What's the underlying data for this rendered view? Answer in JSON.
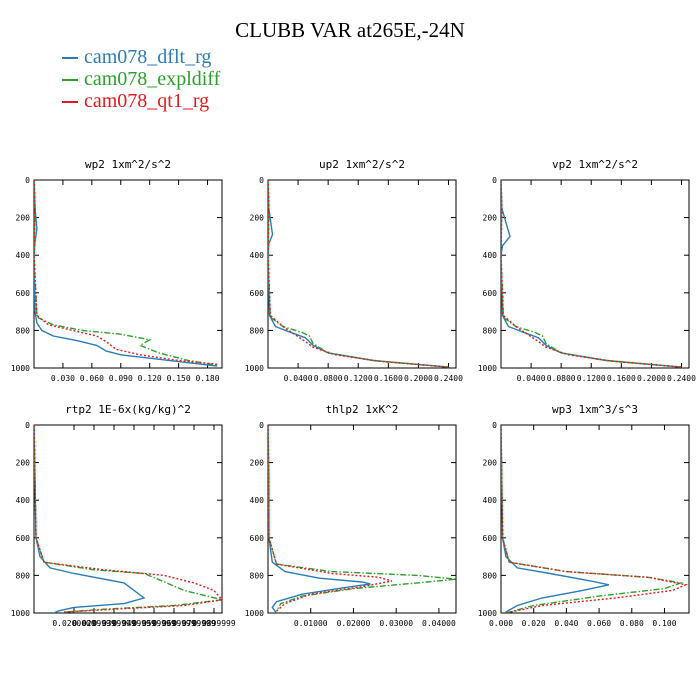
{
  "figure": {
    "title": "CLUBB VAR at265E,-24N"
  },
  "legend": [
    {
      "label": "cam078_dflt_rg",
      "color": "#2c7bb6",
      "dash": "solid"
    },
    {
      "label": "cam078_expldiff",
      "color": "#2ca02c",
      "dash": "dashdot"
    },
    {
      "label": "cam078_qt1_rg",
      "color": "#e31a1c",
      "dash": "dotted"
    }
  ],
  "chart_data": [
    {
      "type": "line",
      "title": "wp2  1xm^2/s^2",
      "xlim": [
        0,
        0.195
      ],
      "ylim": [
        0,
        1000
      ],
      "y_inverted": true,
      "xticks": [
        0.03,
        0.06,
        0.09,
        0.12,
        0.15,
        0.18
      ],
      "xtick_labels": [
        "0.030",
        "0.060",
        "0.090",
        "0.120",
        "0.150",
        "0.180"
      ],
      "yticks": [
        0,
        200,
        400,
        600,
        800,
        1000
      ],
      "ytick_labels": [
        "0",
        "200",
        "400",
        "600",
        "800",
        "1000"
      ],
      "series": [
        {
          "name": "cam078_dflt_rg",
          "x": [
            0.0,
            0.001,
            0.003,
            0.001,
            0.0,
            0.001,
            0.003,
            0.008,
            0.02,
            0.045,
            0.065,
            0.075,
            0.09,
            0.19
          ],
          "y": [
            0,
            150,
            260,
            330,
            400,
            700,
            760,
            800,
            830,
            855,
            880,
            910,
            930,
            990
          ]
        },
        {
          "name": "cam078_expldiff",
          "x": [
            0.0,
            0.001,
            0.0,
            0.003,
            0.02,
            0.05,
            0.09,
            0.12,
            0.11,
            0.13,
            0.16,
            0.19
          ],
          "y": [
            0,
            150,
            400,
            730,
            770,
            800,
            820,
            850,
            880,
            920,
            960,
            985
          ]
        },
        {
          "name": "cam078_qt1_rg",
          "x": [
            0.0,
            0.001,
            0.0,
            0.003,
            0.015,
            0.04,
            0.065,
            0.075,
            0.085,
            0.11,
            0.15,
            0.19
          ],
          "y": [
            0,
            150,
            400,
            720,
            770,
            800,
            830,
            860,
            900,
            930,
            960,
            980
          ]
        }
      ]
    },
    {
      "type": "line",
      "title": "up2  1xm^2/s^2",
      "xlim": [
        0,
        0.25
      ],
      "ylim": [
        0,
        1000
      ],
      "y_inverted": true,
      "xticks": [
        0.04,
        0.08,
        0.12,
        0.16,
        0.2,
        0.24
      ],
      "xtick_labels": [
        "0.0400",
        "0.0800",
        "0.1200",
        "0.1600",
        "0.2000",
        "0.2400"
      ],
      "yticks": [
        0,
        200,
        400,
        600,
        800,
        1000
      ],
      "ytick_labels": [
        "0",
        "200",
        "400",
        "600",
        "800",
        "1000"
      ],
      "series": [
        {
          "name": "cam078_dflt_rg",
          "x": [
            0.0,
            0.001,
            0.006,
            0.001,
            0.0,
            0.002,
            0.01,
            0.03,
            0.05,
            0.06,
            0.08,
            0.14,
            0.24
          ],
          "y": [
            0,
            150,
            290,
            340,
            400,
            720,
            780,
            810,
            840,
            880,
            920,
            960,
            995
          ]
        },
        {
          "name": "cam078_expldiff",
          "x": [
            0.0,
            0.001,
            0.0,
            0.003,
            0.02,
            0.045,
            0.055,
            0.06,
            0.08,
            0.14,
            0.24
          ],
          "y": [
            0,
            150,
            400,
            730,
            780,
            810,
            830,
            870,
            920,
            960,
            995
          ]
        },
        {
          "name": "cam078_qt1_rg",
          "x": [
            0.0,
            0.001,
            0.0,
            0.003,
            0.02,
            0.035,
            0.05,
            0.06,
            0.09,
            0.15,
            0.24
          ],
          "y": [
            0,
            150,
            400,
            720,
            780,
            820,
            860,
            890,
            930,
            965,
            995
          ]
        }
      ]
    },
    {
      "type": "line",
      "title": "vp2  1xm^2/s^2",
      "xlim": [
        0,
        0.25
      ],
      "ylim": [
        0,
        1000
      ],
      "y_inverted": true,
      "xticks": [
        0.04,
        0.08,
        0.12,
        0.16,
        0.2,
        0.24
      ],
      "xtick_labels": [
        "0.0400",
        "0.0800",
        "0.1200",
        "0.1600",
        "0.2000",
        "0.2400"
      ],
      "yticks": [
        0,
        200,
        400,
        600,
        800,
        1000
      ],
      "ytick_labels": [
        "0",
        "200",
        "400",
        "600",
        "800",
        "1000"
      ],
      "series": [
        {
          "name": "cam078_dflt_rg",
          "x": [
            0.0,
            0.001,
            0.012,
            0.002,
            0.0,
            0.002,
            0.01,
            0.03,
            0.05,
            0.06,
            0.08,
            0.14,
            0.24
          ],
          "y": [
            0,
            150,
            300,
            350,
            400,
            720,
            780,
            810,
            840,
            880,
            920,
            960,
            995
          ]
        },
        {
          "name": "cam078_expldiff",
          "x": [
            0.0,
            0.001,
            0.0,
            0.003,
            0.02,
            0.045,
            0.055,
            0.06,
            0.08,
            0.14,
            0.24
          ],
          "y": [
            0,
            150,
            400,
            730,
            780,
            810,
            830,
            870,
            920,
            960,
            995
          ]
        },
        {
          "name": "cam078_qt1_rg",
          "x": [
            0.0,
            0.001,
            0.0,
            0.003,
            0.02,
            0.035,
            0.05,
            0.06,
            0.09,
            0.15,
            0.24
          ],
          "y": [
            0,
            150,
            400,
            720,
            780,
            820,
            860,
            890,
            930,
            965,
            995
          ]
        }
      ]
    },
    {
      "type": "line",
      "title": "rtp2  1E-6x(kg/kg)^2",
      "xlim": [
        0,
        0.094
      ],
      "ylim": [
        0,
        1000
      ],
      "y_inverted": true,
      "xticks": [
        0.02,
        0.03,
        0.04,
        0.05,
        0.06,
        0.07,
        0.08,
        0.09
      ],
      "xtick_labels": [
        "0.0200000",
        "0.0299999",
        "0.0399999",
        "0.0499999",
        "0.0599999",
        "0.0699999",
        "0.0799999",
        "0.0899999"
      ],
      "yticks": [
        0,
        200,
        400,
        600,
        800,
        1000
      ],
      "ytick_labels": [
        "0",
        "200",
        "400",
        "600",
        "800",
        "1000"
      ],
      "series": [
        {
          "name": "cam078_dflt_rg",
          "x": [
            0.0,
            0.001,
            0.003,
            0.008,
            0.02,
            0.045,
            0.055,
            0.045,
            0.02,
            0.012,
            0.01
          ],
          "y": [
            0,
            600,
            700,
            760,
            790,
            840,
            920,
            950,
            970,
            990,
            1000
          ]
        },
        {
          "name": "cam078_expldiff",
          "x": [
            0.0,
            0.001,
            0.005,
            0.03,
            0.055,
            0.062,
            0.075,
            0.094,
            0.07,
            0.035,
            0.015
          ],
          "y": [
            0,
            600,
            730,
            770,
            790,
            820,
            880,
            930,
            960,
            980,
            995
          ]
        },
        {
          "name": "cam078_qt1_rg",
          "x": [
            0.0,
            0.001,
            0.005,
            0.035,
            0.065,
            0.08,
            0.09,
            0.094,
            0.075,
            0.04,
            0.015
          ],
          "y": [
            0,
            600,
            730,
            770,
            800,
            840,
            880,
            930,
            960,
            980,
            995
          ]
        }
      ]
    },
    {
      "type": "line",
      "title": "thlp2  1xK^2",
      "xlim": [
        0,
        0.044
      ],
      "ylim": [
        0,
        1000
      ],
      "y_inverted": true,
      "xticks": [
        0.01,
        0.02,
        0.03,
        0.04
      ],
      "xtick_labels": [
        "0.01000",
        "0.02000",
        "0.03000",
        "0.04000"
      ],
      "yticks": [
        0,
        200,
        400,
        600,
        800,
        1000
      ],
      "ytick_labels": [
        "0",
        "200",
        "400",
        "600",
        "800",
        "1000"
      ],
      "series": [
        {
          "name": "cam078_dflt_rg",
          "x": [
            0.0,
            0.0002,
            0.0002,
            0.001,
            0.004,
            0.012,
            0.022,
            0.024,
            0.018,
            0.008,
            0.002,
            0.001,
            0.002
          ],
          "y": [
            0,
            300,
            600,
            730,
            780,
            815,
            835,
            845,
            865,
            900,
            940,
            970,
            1000
          ]
        },
        {
          "name": "cam078_expldiff",
          "x": [
            0.0,
            0.0002,
            0.002,
            0.015,
            0.035,
            0.044,
            0.035,
            0.02,
            0.008,
            0.003,
            0.002
          ],
          "y": [
            0,
            600,
            740,
            780,
            800,
            820,
            840,
            870,
            910,
            950,
            990
          ]
        },
        {
          "name": "cam078_qt1_rg",
          "x": [
            0.0,
            0.0002,
            0.002,
            0.015,
            0.026,
            0.029,
            0.022,
            0.01,
            0.004,
            0.002
          ],
          "y": [
            0,
            600,
            740,
            790,
            810,
            830,
            860,
            900,
            950,
            990
          ]
        }
      ]
    },
    {
      "type": "line",
      "title": "wp3  1xm^3/s^3",
      "xlim": [
        0,
        0.115
      ],
      "ylim": [
        0,
        1000
      ],
      "y_inverted": true,
      "xticks": [
        0.0,
        0.02,
        0.04,
        0.06,
        0.08,
        0.1
      ],
      "xtick_labels": [
        "0.000",
        "0.020",
        "0.040",
        "0.060",
        "0.080",
        "0.100"
      ],
      "yticks": [
        0,
        200,
        400,
        600,
        800,
        1000
      ],
      "ytick_labels": [
        "0",
        "200",
        "400",
        "600",
        "800",
        "1000"
      ],
      "series": [
        {
          "name": "cam078_dflt_rg",
          "x": [
            0.0,
            0.001,
            0.003,
            0.01,
            0.03,
            0.055,
            0.066,
            0.05,
            0.025,
            0.01,
            0.002
          ],
          "y": [
            0,
            600,
            700,
            760,
            790,
            830,
            850,
            880,
            920,
            960,
            1000
          ]
        },
        {
          "name": "cam078_expldiff",
          "x": [
            0.0,
            0.001,
            0.005,
            0.04,
            0.09,
            0.11,
            0.1,
            0.06,
            0.02,
            0.003
          ],
          "y": [
            0,
            600,
            730,
            780,
            810,
            840,
            870,
            910,
            960,
            1000
          ]
        },
        {
          "name": "cam078_qt1_rg",
          "x": [
            0.0,
            0.001,
            0.005,
            0.04,
            0.09,
            0.113,
            0.105,
            0.07,
            0.025,
            0.003
          ],
          "y": [
            0,
            600,
            730,
            780,
            810,
            850,
            880,
            920,
            960,
            1000
          ]
        }
      ]
    }
  ]
}
